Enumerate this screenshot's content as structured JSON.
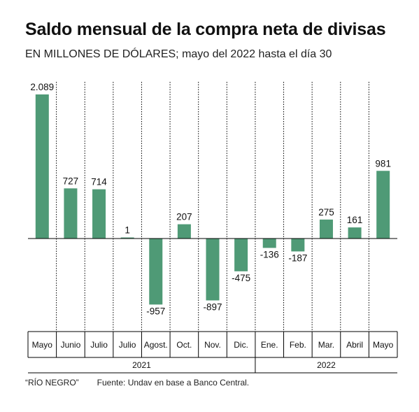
{
  "title": "Saldo mensual de la compra neta de divisas",
  "subtitle": "EN MILLONES DE DÓLARES; mayo del 2022 hasta el día 30",
  "footer": {
    "credit": "“RÍO NEGRO”",
    "source": "Fuente: Undav en base a Banco Central."
  },
  "colors": {
    "bar": "#4f9a76",
    "axis": "#000000",
    "grid": "#000000"
  },
  "chart_data": {
    "type": "bar",
    "categories": [
      "Mayo",
      "Junio",
      "Julio",
      "Julio",
      "Agost.",
      "Oct.",
      "Nov.",
      "Dic.",
      "Ene.",
      "Feb.",
      "Mar.",
      "Abril",
      "Mayo"
    ],
    "values": [
      2089,
      727,
      714,
      1,
      -957,
      207,
      -897,
      -475,
      -136,
      -187,
      275,
      161,
      981
    ],
    "value_labels": [
      "2.089",
      "727",
      "714",
      "1",
      "-957",
      "207",
      "-897",
      "-475",
      "-136",
      "-187",
      "275",
      "161",
      "981"
    ],
    "year_groups": [
      {
        "label": "2021",
        "count": 8
      },
      {
        "label": "2022",
        "count": 5
      }
    ],
    "ylim": [
      -1350,
      2200
    ],
    "grid": "vertical dotted separators",
    "title": "Saldo mensual de la compra neta de divisas",
    "xlabel": "",
    "ylabel": ""
  }
}
